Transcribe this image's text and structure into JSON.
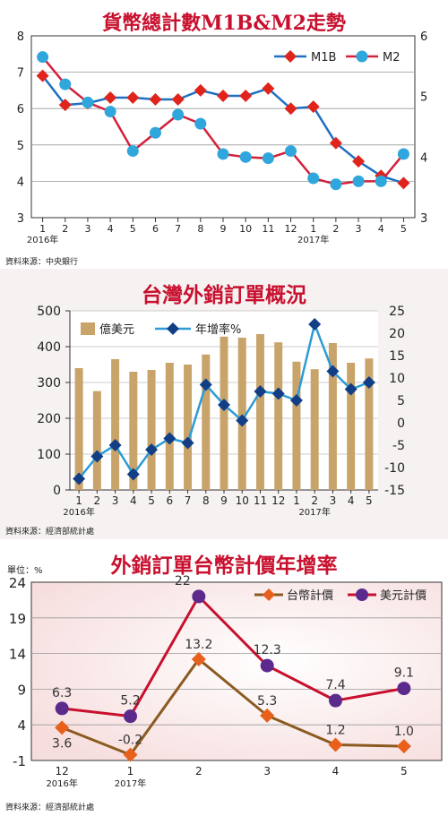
{
  "chart_data": [
    {
      "type": "line",
      "title": "貨幣總計數M1B&M2走勢",
      "x": [
        "1",
        "2",
        "3",
        "4",
        "5",
        "6",
        "7",
        "8",
        "9",
        "10",
        "11",
        "12",
        "1",
        "2",
        "3",
        "4",
        "5"
      ],
      "x_year_labels": [
        "2016年",
        "2017年"
      ],
      "yleft": {
        "ticks": [
          "3",
          "4",
          "5",
          "6",
          "7",
          "8"
        ],
        "range": [
          3,
          8
        ]
      },
      "yright": {
        "ticks": [
          "3",
          "4",
          "5",
          "6"
        ],
        "range": [
          3,
          6
        ]
      },
      "series": [
        {
          "name": "M1B",
          "axis": "left",
          "color": "#e0241b",
          "marker": "diamond",
          "values": [
            6.9,
            6.1,
            6.15,
            6.3,
            6.3,
            6.25,
            6.25,
            6.5,
            6.35,
            6.35,
            6.55,
            6.0,
            6.05,
            5.05,
            4.55,
            4.15,
            3.95
          ]
        },
        {
          "name": "M2",
          "axis": "right",
          "color": "#c8102e",
          "marker": "circle",
          "values": [
            5.65,
            5.2,
            4.9,
            4.75,
            4.1,
            4.4,
            4.7,
            4.55,
            4.05,
            4.0,
            3.98,
            4.1,
            3.65,
            3.55,
            3.6,
            3.6,
            4.05
          ]
        }
      ],
      "legend": "top-right",
      "grid": true
    },
    {
      "type": "bar+line",
      "title": "台灣外銷訂單概況",
      "x": [
        "1",
        "2",
        "3",
        "4",
        "5",
        "6",
        "7",
        "8",
        "9",
        "10",
        "11",
        "12",
        "1",
        "2",
        "3",
        "4",
        "5"
      ],
      "x_year_labels": [
        "2016年",
        "2017年"
      ],
      "yleft": {
        "ticks": [
          "0",
          "100",
          "200",
          "300",
          "400",
          "500"
        ],
        "range": [
          0,
          500
        ]
      },
      "yright": {
        "ticks": [
          "-15",
          "-10",
          "-5",
          "0",
          "5",
          "10",
          "15",
          "20",
          "25"
        ],
        "range": [
          -15,
          25
        ]
      },
      "series": [
        {
          "name": "億美元",
          "type": "bar",
          "axis": "left",
          "color": "#c9a46a",
          "values": [
            340,
            276,
            365,
            330,
            335,
            355,
            350,
            378,
            428,
            425,
            435,
            412,
            358,
            337,
            410,
            355,
            367
          ]
        },
        {
          "name": "年增率%",
          "type": "line",
          "axis": "right",
          "color": "#2e9bd6",
          "marker": "diamond",
          "values": [
            -12.5,
            -7.5,
            -5.0,
            -11.5,
            -6.0,
            -3.5,
            -4.5,
            8.5,
            4.0,
            0.5,
            7.0,
            6.5,
            5.0,
            22.0,
            11.5,
            7.5,
            9.0
          ]
        }
      ],
      "legend": "top-left",
      "grid": true
    },
    {
      "type": "line",
      "title": "外銷訂單台幣計價年增率",
      "unit_label": "單位：%",
      "x": [
        "12",
        "1",
        "2",
        "3",
        "4",
        "5"
      ],
      "x_year_labels": [
        "2016年",
        "2017年"
      ],
      "y": {
        "ticks": [
          "-1",
          "4",
          "9",
          "14",
          "19",
          "24"
        ],
        "range": [
          -1,
          24
        ]
      },
      "series": [
        {
          "name": "台幣計價",
          "color": "#e8601c",
          "marker": "diamond",
          "values": [
            3.6,
            -0.2,
            13.2,
            5.3,
            1.2,
            1.0
          ],
          "labels": [
            "3.6",
            "-0.2",
            "13.2",
            "5.3",
            "1.2",
            "1.0"
          ]
        },
        {
          "name": "美元計價",
          "color": "#c8102e",
          "marker": "circle",
          "values": [
            6.3,
            5.2,
            22,
            12.3,
            7.4,
            9.1
          ],
          "labels": [
            "6.3",
            "5.2",
            "22",
            "12.3",
            "7.4",
            "9.1"
          ]
        }
      ],
      "legend": "top-right",
      "grid": true
    }
  ],
  "sources": {
    "p1": "資料來源：中央銀行",
    "p2": "資料來源：經濟部統計處",
    "p3": "資料來源：經濟部統計處"
  }
}
